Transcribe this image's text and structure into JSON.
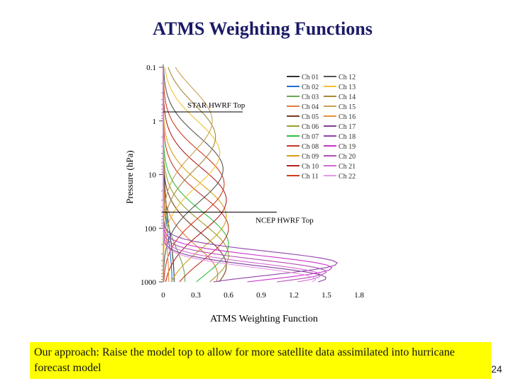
{
  "slide": {
    "title": "ATMS Weighting Functions",
    "callout_text": "Our approach: Raise the model  top to allow for more satellite data assimilated into hurricane forecast model",
    "page_number": "24",
    "callout_color": "#ffff00",
    "title_color": "#1a1a66"
  },
  "chart_data": {
    "type": "line",
    "title": "",
    "xlabel": "ATMS Weighting Function",
    "ylabel": "Pressure (hPa)",
    "xlim": [
      0,
      1.8
    ],
    "ylim": [
      0.1,
      1000
    ],
    "yscale": "log",
    "y_inverted": true,
    "x_ticks": [
      "0",
      "0.3",
      "0.6",
      "0.9",
      "1.2",
      "1.5",
      "1.8"
    ],
    "x_tick_values": [
      0,
      0.3,
      0.6,
      0.9,
      1.2,
      1.5,
      1.8
    ],
    "y_ticks": [
      "0.1",
      "1",
      "10",
      "100",
      "1000"
    ],
    "y_tick_values": [
      0.1,
      1,
      10,
      100,
      1000
    ],
    "legend_position": "top-right",
    "reference_lines": [
      {
        "label": "STAR HWRF Top",
        "pressure": 0.5
      },
      {
        "label": "NCEP HWRF Top",
        "pressure": 50
      }
    ],
    "series": [
      {
        "name": "Ch 01",
        "color": "#333333",
        "peak_pressure": 1000,
        "peak_value": 0.1,
        "width": 0.9
      },
      {
        "name": "Ch 02",
        "color": "#1f6fd6",
        "peak_pressure": 1000,
        "peak_value": 0.08,
        "width": 0.8
      },
      {
        "name": "Ch 03",
        "color": "#6aa84f",
        "peak_pressure": 950,
        "peak_value": 0.2,
        "width": 0.6
      },
      {
        "name": "Ch 04",
        "color": "#e07b39",
        "peak_pressure": 750,
        "peak_value": 0.5,
        "width": 0.55
      },
      {
        "name": "Ch 05",
        "color": "#7c3c1e",
        "peak_pressure": 500,
        "peak_value": 0.58,
        "width": 0.6
      },
      {
        "name": "Ch 06",
        "color": "#9e9e2a",
        "peak_pressure": 320,
        "peak_value": 0.6,
        "width": 0.6
      },
      {
        "name": "Ch 07",
        "color": "#2fbf3f",
        "peak_pressure": 200,
        "peak_value": 0.6,
        "width": 0.6
      },
      {
        "name": "Ch 08",
        "color": "#c0392b",
        "peak_pressure": 100,
        "peak_value": 0.6,
        "width": 0.6
      },
      {
        "name": "Ch 09",
        "color": "#d4a017",
        "peak_pressure": 60,
        "peak_value": 0.58,
        "width": 0.6
      },
      {
        "name": "Ch 10",
        "color": "#b22222",
        "peak_pressure": 30,
        "peak_value": 0.58,
        "width": 0.6
      },
      {
        "name": "Ch 11",
        "color": "#d23c1e",
        "peak_pressure": 15,
        "peak_value": 0.56,
        "width": 0.6
      },
      {
        "name": "Ch 12",
        "color": "#555555",
        "peak_pressure": 8,
        "peak_value": 0.55,
        "width": 0.6
      },
      {
        "name": "Ch 13",
        "color": "#f1c232",
        "peak_pressure": 4,
        "peak_value": 0.52,
        "width": 0.6
      },
      {
        "name": "Ch 14",
        "color": "#a68a3c",
        "peak_pressure": 2,
        "peak_value": 0.48,
        "width": 0.6
      },
      {
        "name": "Ch 15",
        "color": "#c8a050",
        "peak_pressure": 1,
        "peak_value": 0.45,
        "width": 0.6
      },
      {
        "name": "Ch 16",
        "color": "#e69138",
        "peak_pressure": 1000,
        "peak_value": 0.05,
        "width": 0.8
      },
      {
        "name": "Ch 17",
        "color": "#7e3f98",
        "peak_pressure": 850,
        "peak_value": 1.5,
        "width": 0.22
      },
      {
        "name": "Ch 18",
        "color": "#8e44ad",
        "peak_pressure": 450,
        "peak_value": 1.6,
        "width": 0.22
      },
      {
        "name": "Ch 19",
        "color": "#cc33cc",
        "peak_pressure": 550,
        "peak_value": 1.55,
        "width": 0.22
      },
      {
        "name": "Ch 20",
        "color": "#b04fb0",
        "peak_pressure": 650,
        "peak_value": 1.5,
        "width": 0.22
      },
      {
        "name": "Ch 21",
        "color": "#d36ad3",
        "peak_pressure": 750,
        "peak_value": 1.45,
        "width": 0.22
      },
      {
        "name": "Ch 22",
        "color": "#e896e8",
        "peak_pressure": 900,
        "peak_value": 1.4,
        "width": 0.22
      }
    ]
  }
}
